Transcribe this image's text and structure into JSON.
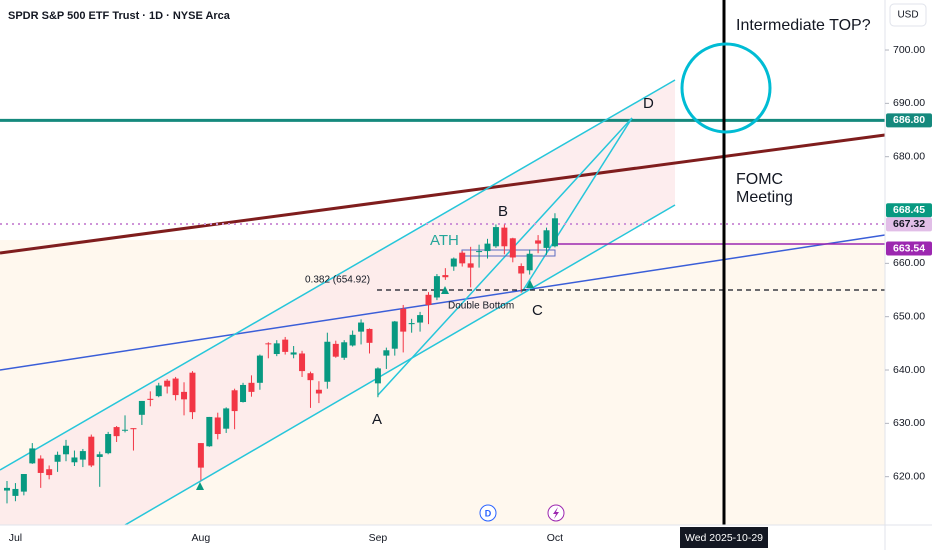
{
  "chart_data": {
    "type": "candlestick",
    "title": "SPDR S&P 500 ETF Trust · 1D · NYSE Arca",
    "currency": "USD",
    "categories": [
      null,
      "Jul",
      null,
      null,
      null,
      null,
      null,
      null,
      null,
      null,
      null,
      null,
      null,
      null,
      null,
      null,
      null,
      null,
      null,
      null,
      null,
      null,
      null,
      "Aug",
      null,
      null,
      null,
      null,
      null,
      null,
      null,
      null,
      null,
      null,
      null,
      null,
      null,
      null,
      null,
      null,
      null,
      null,
      null,
      null,
      "Sep",
      null,
      null,
      null,
      null,
      null,
      null,
      null,
      null,
      null,
      null,
      null,
      null,
      null,
      null,
      null,
      null,
      null,
      null,
      null,
      null,
      "Oct"
    ],
    "open": [
      617.4,
      616.4,
      617.2,
      622.5,
      623.4,
      621.4,
      622.8,
      624.2,
      622.7,
      623.2,
      627.5,
      623.7,
      624.4,
      629.3,
      628.8,
      629.1,
      631.6,
      634.6,
      635.1,
      638.0,
      638.4,
      635.9,
      639.5,
      626.3,
      625.7,
      631.1,
      629.0,
      636.2,
      634.0,
      637.6,
      637.6,
      645.0,
      643.0,
      645.7,
      642.9,
      643.1,
      639.4,
      636.3,
      637.8,
      644.9,
      642.3,
      644.6,
      647.2,
      647.7,
      637.5,
      642.7,
      644.0,
      651.5,
      648.6,
      648.9,
      654.1,
      653.6,
      657.8,
      659.4,
      662.0,
      660.0,
      662.2,
      662.3,
      663.2,
      666.7,
      664.7,
      659.5,
      658.7,
      664.3,
      662.9,
      663.2
    ],
    "high": [
      619.2,
      618.8,
      620.5,
      626.3,
      624.0,
      622.1,
      624.7,
      626.9,
      624.9,
      625.2,
      627.9,
      624.7,
      628.4,
      629.5,
      631.5,
      629.1,
      634.2,
      636.0,
      637.6,
      638.3,
      638.7,
      637.7,
      639.8,
      626.3,
      631.2,
      632.0,
      633.0,
      636.5,
      637.6,
      639.0,
      642.9,
      645.2,
      645.6,
      646.2,
      644.5,
      643.6,
      639.7,
      637.9,
      647.0,
      645.5,
      645.6,
      647.4,
      649.5,
      647.8,
      640.5,
      644.2,
      649.2,
      652.2,
      649.6,
      650.9,
      654.6,
      658.0,
      659.1,
      661.1,
      662.3,
      663.1,
      663.5,
      664.6,
      667.3,
      667.3,
      664.8,
      660.0,
      662.6,
      665.3,
      666.7,
      669.4
    ],
    "low": [
      615.0,
      615.4,
      616.5,
      622.4,
      617.9,
      619.5,
      620.9,
      622.9,
      622.0,
      621.8,
      621.8,
      618.1,
      624.2,
      626.5,
      628.3,
      624.9,
      629.7,
      633.2,
      634.9,
      635.6,
      634.3,
      631.5,
      630.8,
      619.3,
      625.6,
      627.0,
      628.2,
      628.9,
      633.9,
      635.0,
      636.3,
      642.2,
      642.6,
      642.9,
      642.2,
      638.7,
      632.9,
      633.8,
      636.5,
      642.3,
      641.9,
      644.4,
      644.8,
      643.1,
      634.9,
      640.2,
      642.7,
      643.3,
      647.0,
      647.2,
      648.6,
      653.1,
      656.9,
      658.6,
      659.4,
      655.5,
      659.2,
      660.9,
      662.9,
      661.7,
      660.2,
      654.5,
      657.9,
      661.9,
      661.6,
      663.0
    ],
    "close": [
      617.9,
      617.7,
      620.5,
      625.3,
      620.7,
      620.3,
      624.1,
      625.8,
      623.6,
      624.8,
      622.1,
      624.2,
      628.0,
      627.6,
      628.8,
      628.9,
      634.2,
      634.4,
      637.1,
      636.9,
      635.3,
      634.5,
      632.1,
      621.7,
      631.2,
      628.0,
      632.8,
      632.3,
      637.2,
      635.9,
      642.7,
      644.9,
      645.0,
      643.4,
      643.3,
      639.8,
      638.1,
      635.6,
      645.3,
      642.5,
      645.2,
      646.6,
      648.9,
      645.1,
      640.3,
      643.7,
      649.1,
      647.2,
      648.8,
      650.3,
      652.2,
      657.6,
      657.4,
      660.9,
      660.0,
      659.2,
      662.3,
      663.7,
      666.8,
      663.2,
      661.1,
      658.1,
      661.8,
      663.7,
      666.2,
      668.45
    ],
    "up_color": "#089981",
    "down_color": "#f23645",
    "ylim": [
      610.94,
      709.38
    ],
    "yticks": [
      {
        "value": 620,
        "label": "620.00"
      },
      {
        "value": 630,
        "label": "630.00"
      },
      {
        "value": 640,
        "label": "640.00"
      },
      {
        "value": 650,
        "label": "650.00"
      },
      {
        "value": 660,
        "label": "660.00"
      },
      {
        "value": 680,
        "label": "680.00"
      },
      {
        "value": 690,
        "label": "690.00"
      },
      {
        "value": 700,
        "label": "700.00"
      }
    ],
    "price_labels": [
      {
        "value": 686.8,
        "label": "686.80",
        "color": "#15897d"
      },
      {
        "value": 668.45,
        "label": "668.45",
        "color": "#089981"
      },
      {
        "value": 667.32,
        "label": "667.32",
        "color": "#e1bee7"
      },
      {
        "value": 663.54,
        "label": "663.54",
        "color": "#9c27b0"
      }
    ],
    "annotations": [
      "Intermediate TOP?",
      "FOMC",
      "Meeting",
      "D",
      "B",
      "ATH",
      "A",
      "C",
      "Double Bottom",
      "0.382 (654.92)"
    ],
    "date_marker": "Wed 2025-10-29",
    "dividend_marker": "D"
  }
}
